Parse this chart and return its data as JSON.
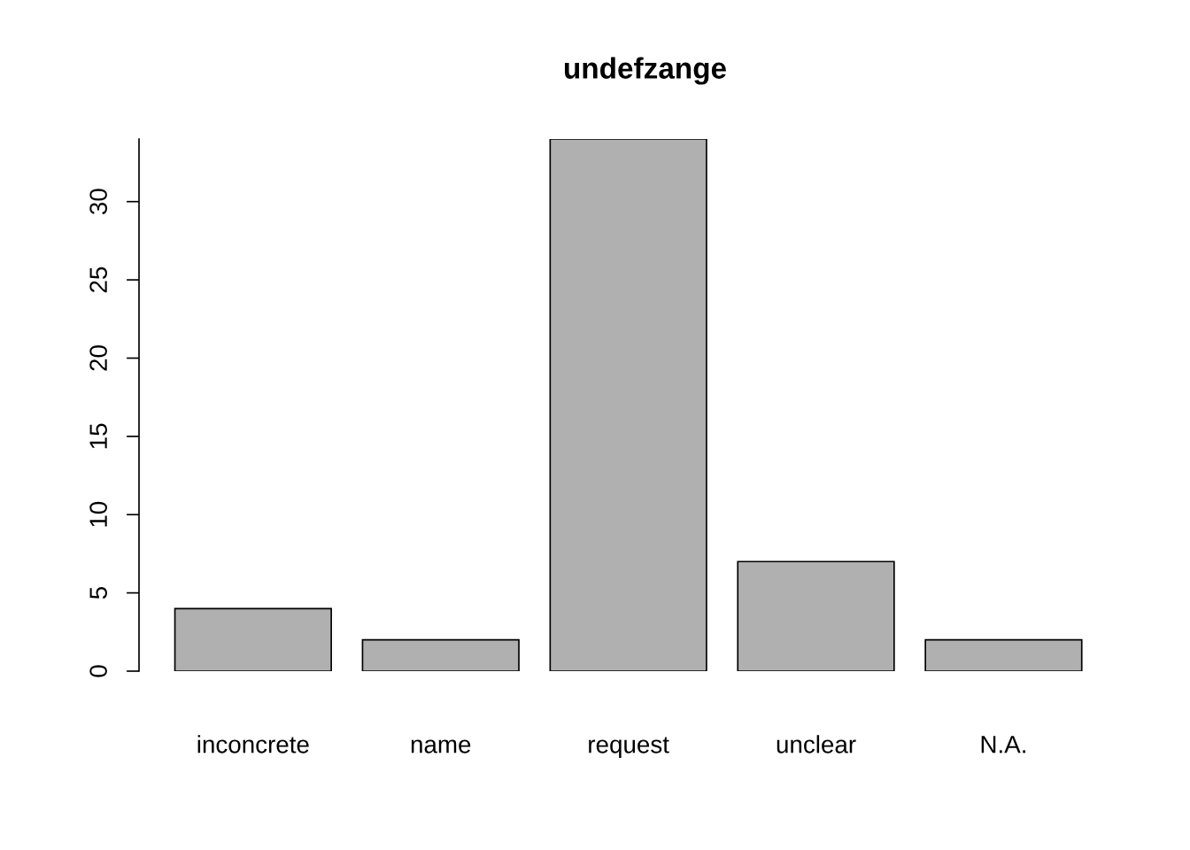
{
  "chart_data": {
    "type": "bar",
    "title": "undefzange",
    "categories": [
      "inconcrete",
      "name",
      "request",
      "unclear",
      "N.A."
    ],
    "values": [
      4,
      2,
      34,
      7,
      2
    ],
    "color": "#b0b0b0",
    "ylim": [
      0,
      34
    ],
    "yticks": [
      0,
      5,
      10,
      15,
      20,
      25,
      30
    ],
    "grid": false,
    "legend": false
  }
}
